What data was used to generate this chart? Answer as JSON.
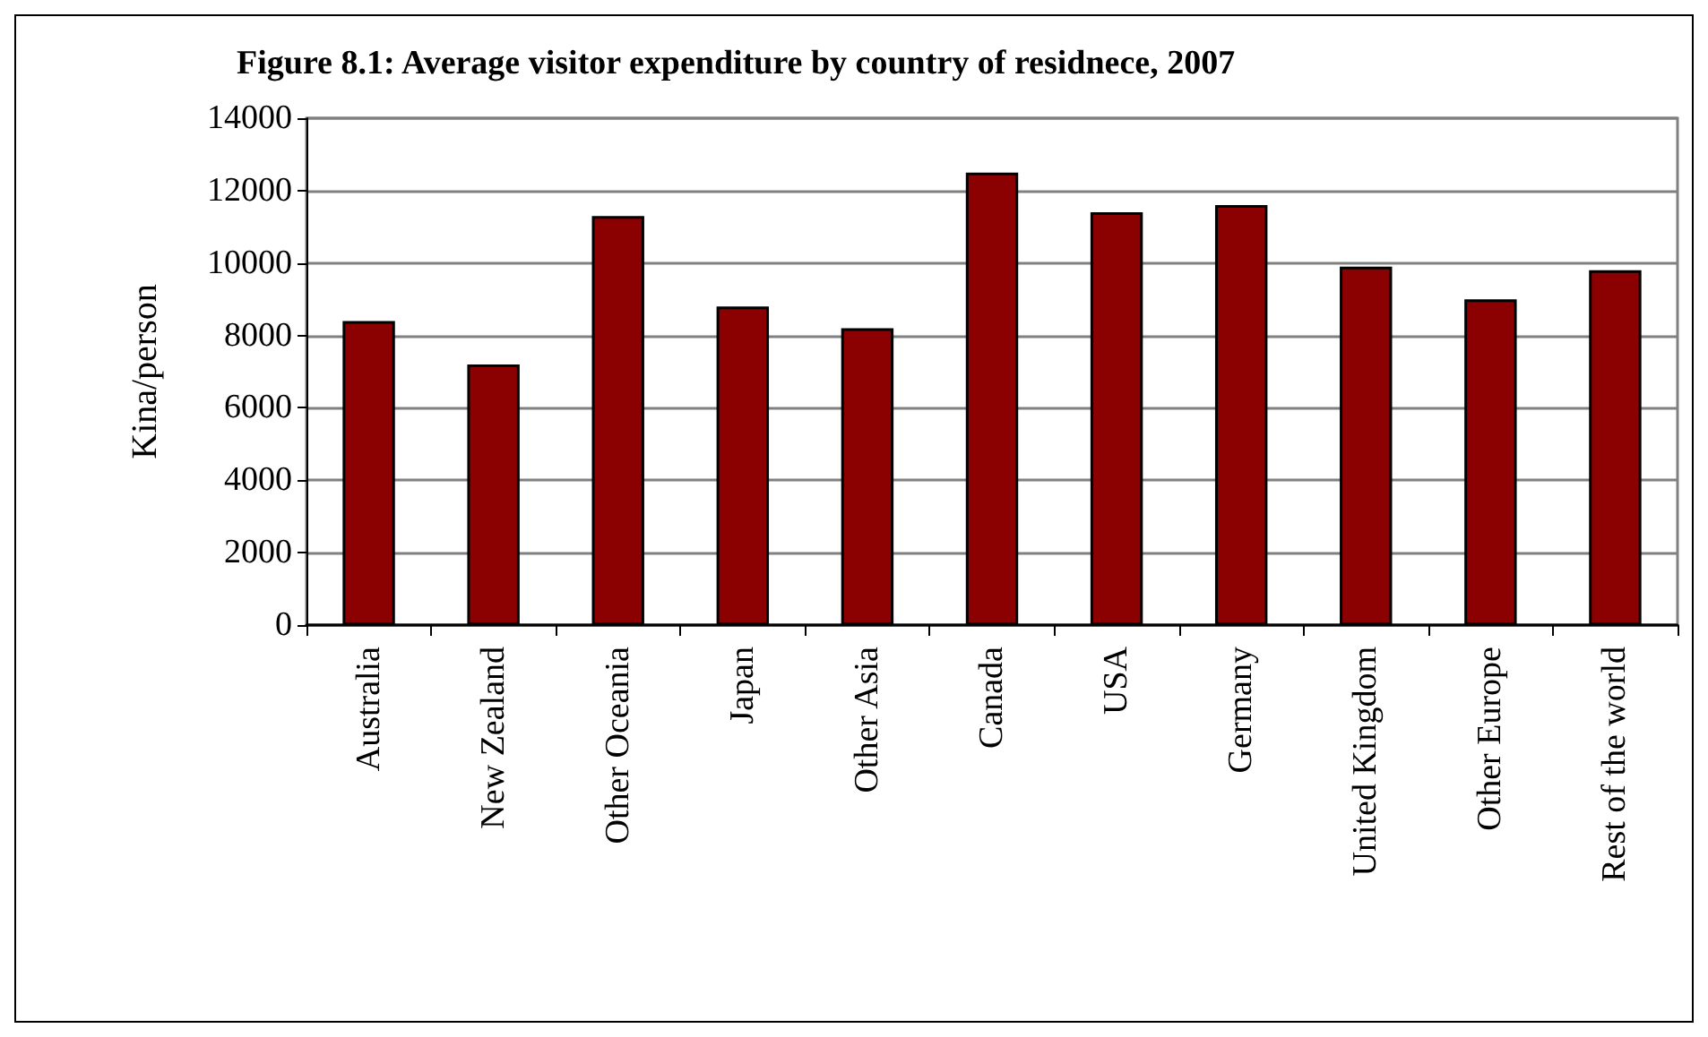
{
  "chart_data": {
    "type": "bar",
    "title": "Figure 8.1: Average visitor expenditure by country of residnece, 2007",
    "ylabel": "Kina/person",
    "categories": [
      "Australia",
      "New Zealand",
      "Other Oceania",
      "Japan",
      "Other Asia",
      "Canada",
      "USA",
      "Germany",
      "United Kingdom",
      "Other Europe",
      "Rest of the world"
    ],
    "values": [
      8400,
      7200,
      11300,
      8800,
      8200,
      12500,
      11400,
      11600,
      9900,
      9000,
      9800
    ],
    "color": "#8b0000",
    "ylim": [
      0,
      14000
    ],
    "yticks": [
      0,
      2000,
      4000,
      6000,
      8000,
      10000,
      12000,
      14000
    ],
    "grid": "y"
  }
}
